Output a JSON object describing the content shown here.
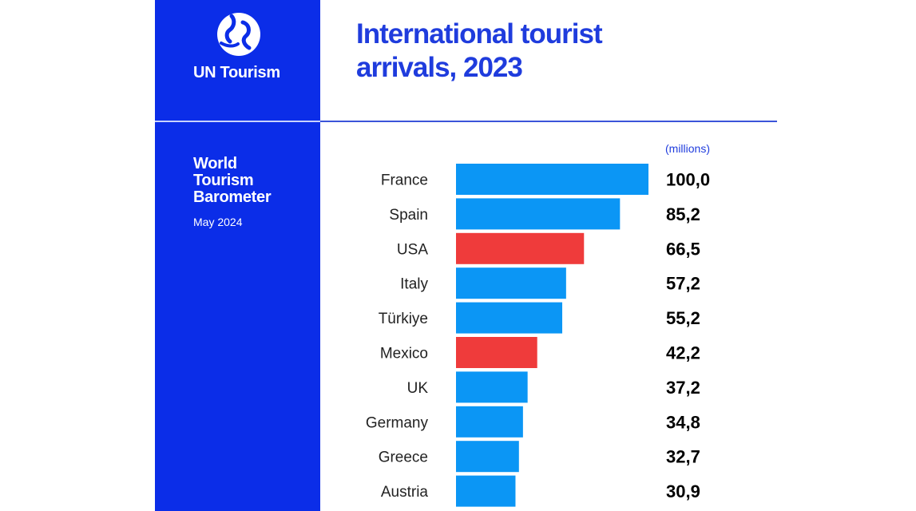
{
  "brand": {
    "name": "UN Tourism",
    "logo_icon": "un-tourism-logo-icon"
  },
  "sidebar": {
    "report_title": "World\nTourism\nBarometer",
    "report_date": "May 2024"
  },
  "colors": {
    "sidebar_blue": "#0b2de8",
    "title_blue": "#1f3cdd",
    "bar_default": "#0b96f5",
    "bar_highlight": "#ef3b3b"
  },
  "chart_data": {
    "type": "bar",
    "orientation": "horizontal",
    "title": "International tourist\narrivals, 2023",
    "unit": "(millions)",
    "categories": [
      "France",
      "Spain",
      "USA",
      "Italy",
      "Türkiye",
      "Mexico",
      "UK",
      "Germany",
      "Greece",
      "Austria"
    ],
    "values": [
      100.0,
      85.2,
      66.5,
      57.2,
      55.2,
      42.2,
      37.2,
      34.8,
      32.7,
      30.9
    ],
    "value_labels": [
      "100,0",
      "85,2",
      "66,5",
      "57,2",
      "55,2",
      "42,2",
      "37,2",
      "34,8",
      "32,7",
      "30,9"
    ],
    "highlighted": [
      "USA",
      "Mexico"
    ],
    "xlim": [
      0,
      100
    ],
    "grid": false,
    "legend": "none"
  }
}
